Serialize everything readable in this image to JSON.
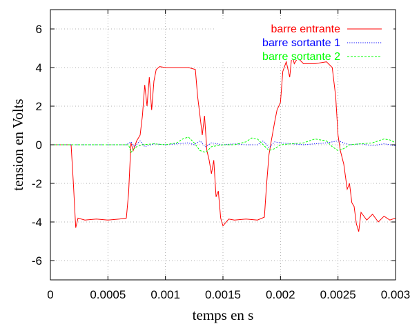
{
  "chart_data": {
    "type": "line",
    "xlabel": "temps en s",
    "ylabel": "tension en Volts",
    "xlim": [
      0,
      0.003
    ],
    "ylim": [
      -7,
      7
    ],
    "x_ticks": [
      0,
      0.0005,
      0.001,
      0.0015,
      0.002,
      0.0025,
      0.003
    ],
    "x_tick_labels": [
      "0",
      "0.0005",
      "0.001",
      "0.0015",
      "0.002",
      "0.0025",
      "0.003"
    ],
    "y_ticks": [
      -6,
      -4,
      -2,
      0,
      2,
      4,
      6
    ],
    "y_tick_labels": [
      "-6",
      "-4",
      "-2",
      "0",
      "2",
      "4",
      "6"
    ],
    "grid": true,
    "legend_position": "top-right",
    "series": [
      {
        "name": "barre entrante",
        "color": "#ff0000",
        "dash": "solid",
        "points": [
          [
            0,
            0
          ],
          [
            0.00018,
            0
          ],
          [
            0.0002,
            -2.0
          ],
          [
            0.00022,
            -4.3
          ],
          [
            0.00024,
            -3.8
          ],
          [
            0.0003,
            -3.9
          ],
          [
            0.0004,
            -3.85
          ],
          [
            0.0005,
            -3.9
          ],
          [
            0.0006,
            -3.85
          ],
          [
            0.00066,
            -3.8
          ],
          [
            0.00068,
            -2.5
          ],
          [
            0.0007,
            0.1
          ],
          [
            0.00072,
            -0.3
          ],
          [
            0.00075,
            0.2
          ],
          [
            0.00078,
            0.5
          ],
          [
            0.0008,
            1.5
          ],
          [
            0.00082,
            3.1
          ],
          [
            0.00084,
            2.0
          ],
          [
            0.00086,
            3.5
          ],
          [
            0.00088,
            1.8
          ],
          [
            0.0009,
            3.3
          ],
          [
            0.00092,
            3.9
          ],
          [
            0.00095,
            4.05
          ],
          [
            0.001,
            4.0
          ],
          [
            0.0011,
            4.0
          ],
          [
            0.0012,
            4.0
          ],
          [
            0.00126,
            3.9
          ],
          [
            0.00128,
            2.5
          ],
          [
            0.0013,
            1.5
          ],
          [
            0.00132,
            0.5
          ],
          [
            0.00134,
            1.5
          ],
          [
            0.00136,
            -0.3
          ],
          [
            0.00138,
            -0.8
          ],
          [
            0.0014,
            -1.5
          ],
          [
            0.00142,
            -0.8
          ],
          [
            0.00144,
            -2.7
          ],
          [
            0.00146,
            -2.4
          ],
          [
            0.00148,
            -3.8
          ],
          [
            0.0015,
            -4.2
          ],
          [
            0.00155,
            -3.85
          ],
          [
            0.0016,
            -3.9
          ],
          [
            0.0017,
            -3.85
          ],
          [
            0.0018,
            -3.9
          ],
          [
            0.00186,
            -3.75
          ],
          [
            0.00188,
            -2.0
          ],
          [
            0.0019,
            -0.5
          ],
          [
            0.00192,
            0.2
          ],
          [
            0.00195,
            1.2
          ],
          [
            0.00197,
            1.8
          ],
          [
            0.002,
            2.2
          ],
          [
            0.00202,
            3.8
          ],
          [
            0.00205,
            4.3
          ],
          [
            0.00208,
            3.5
          ],
          [
            0.0021,
            4.7
          ],
          [
            0.00212,
            4.2
          ],
          [
            0.00215,
            4.5
          ],
          [
            0.0022,
            4.2
          ],
          [
            0.0023,
            4.2
          ],
          [
            0.0024,
            4.3
          ],
          [
            0.00245,
            4.0
          ],
          [
            0.00248,
            2.5
          ],
          [
            0.0025,
            0.5
          ],
          [
            0.00252,
            -0.3
          ],
          [
            0.00255,
            -1.0
          ],
          [
            0.00258,
            -2.3
          ],
          [
            0.0026,
            -2.0
          ],
          [
            0.00262,
            -3.0
          ],
          [
            0.00264,
            -3.2
          ],
          [
            0.00266,
            -4.1
          ],
          [
            0.00268,
            -4.5
          ],
          [
            0.0027,
            -3.5
          ],
          [
            0.00275,
            -3.9
          ],
          [
            0.0028,
            -3.6
          ],
          [
            0.00285,
            -4.0
          ],
          [
            0.0029,
            -3.7
          ],
          [
            0.00295,
            -3.9
          ],
          [
            0.003,
            -3.8
          ]
        ]
      },
      {
        "name": "barre sortante 1",
        "color": "#0000ff",
        "dash": "dotted",
        "points": [
          [
            0,
            0
          ],
          [
            0.00066,
            0
          ],
          [
            0.0007,
            0.15
          ],
          [
            0.00073,
            -0.1
          ],
          [
            0.00078,
            0.2
          ],
          [
            0.00082,
            -0.1
          ],
          [
            0.0009,
            0.05
          ],
          [
            0.001,
            0.0
          ],
          [
            0.0011,
            0.05
          ],
          [
            0.0012,
            0.1
          ],
          [
            0.00125,
            0.0
          ],
          [
            0.0013,
            0.2
          ],
          [
            0.00135,
            -0.1
          ],
          [
            0.0014,
            0.1
          ],
          [
            0.0015,
            0.0
          ],
          [
            0.0016,
            0.05
          ],
          [
            0.0017,
            0.0
          ],
          [
            0.0018,
            0.0
          ],
          [
            0.00185,
            0.2
          ],
          [
            0.0019,
            -0.15
          ],
          [
            0.00195,
            0.15
          ],
          [
            0.002,
            0.1
          ],
          [
            0.0021,
            0.05
          ],
          [
            0.0022,
            0.0
          ],
          [
            0.0023,
            0.05
          ],
          [
            0.0024,
            0.1
          ],
          [
            0.0025,
            0.2
          ],
          [
            0.0026,
            0.0
          ],
          [
            0.0027,
            0.05
          ],
          [
            0.0028,
            -0.05
          ],
          [
            0.0029,
            0.05
          ],
          [
            0.003,
            -0.05
          ]
        ]
      },
      {
        "name": "barre sortante 2",
        "color": "#00ff00",
        "dash": "dashed",
        "points": [
          [
            0,
            0
          ],
          [
            0.00068,
            0
          ],
          [
            0.0007,
            -0.4
          ],
          [
            0.00072,
            -0.25
          ],
          [
            0.00075,
            -0.1
          ],
          [
            0.0008,
            0.0
          ],
          [
            0.0009,
            0.05
          ],
          [
            0.001,
            0.0
          ],
          [
            0.0011,
            0.1
          ],
          [
            0.00115,
            0.3
          ],
          [
            0.0012,
            0.4
          ],
          [
            0.00125,
            0.1
          ],
          [
            0.0013,
            -0.3
          ],
          [
            0.00135,
            -0.4
          ],
          [
            0.0014,
            -0.1
          ],
          [
            0.0015,
            0.0
          ],
          [
            0.0016,
            0.0
          ],
          [
            0.0017,
            0.15
          ],
          [
            0.00175,
            0.35
          ],
          [
            0.0018,
            0.3
          ],
          [
            0.00185,
            0.0
          ],
          [
            0.0019,
            -0.3
          ],
          [
            0.00195,
            -0.2
          ],
          [
            0.002,
            0.0
          ],
          [
            0.0021,
            0.05
          ],
          [
            0.0022,
            0.1
          ],
          [
            0.0023,
            0.3
          ],
          [
            0.0024,
            0.2
          ],
          [
            0.00245,
            -0.1
          ],
          [
            0.0025,
            -0.3
          ],
          [
            0.00255,
            -0.2
          ],
          [
            0.0026,
            0.0
          ],
          [
            0.0027,
            0.05
          ],
          [
            0.0028,
            0.1
          ],
          [
            0.0029,
            0.3
          ],
          [
            0.00295,
            0.25
          ],
          [
            0.003,
            0.1
          ]
        ]
      }
    ]
  }
}
